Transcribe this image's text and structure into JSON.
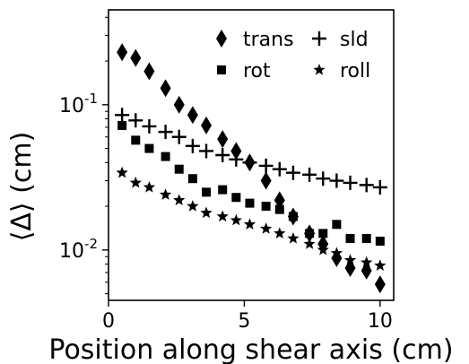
{
  "chart_data": {
    "type": "scatter",
    "xlabel": "Position along shear axis (cm)",
    "ylabel": "⟨Δ⟩ (cm)",
    "xlim": [
      0,
      10.5
    ],
    "ylim": [
      0.0045,
      0.45
    ],
    "yscale": "log",
    "x_ticks": [
      0,
      5,
      10
    ],
    "y_ticks": [
      {
        "value": 0.1,
        "base": "10",
        "exp": "-1"
      },
      {
        "value": 0.01,
        "base": "10",
        "exp": "-2"
      }
    ],
    "grid": false,
    "legend_position": "top-right",
    "series": [
      {
        "name": "trans",
        "marker": "diamond",
        "x": [
          0.5,
          1.0,
          1.5,
          2.1,
          2.6,
          3.1,
          3.6,
          4.2,
          4.7,
          5.2,
          5.8,
          6.3,
          6.8,
          7.4,
          7.9,
          8.4,
          8.9,
          9.5,
          10.0
        ],
        "y": [
          0.23,
          0.21,
          0.17,
          0.13,
          0.1,
          0.085,
          0.072,
          0.058,
          0.048,
          0.04,
          0.03,
          0.022,
          0.017,
          0.013,
          0.011,
          0.0088,
          0.0075,
          0.0072,
          0.0058
        ]
      },
      {
        "name": "rot",
        "marker": "square",
        "x": [
          0.5,
          1.0,
          1.5,
          2.1,
          2.6,
          3.1,
          3.6,
          4.2,
          4.7,
          5.2,
          5.8,
          6.3,
          6.8,
          7.4,
          7.9,
          8.4,
          8.9,
          9.5,
          10.0
        ],
        "y": [
          0.072,
          0.057,
          0.05,
          0.044,
          0.036,
          0.031,
          0.025,
          0.026,
          0.023,
          0.021,
          0.02,
          0.019,
          0.017,
          0.013,
          0.013,
          0.015,
          0.012,
          0.012,
          0.0115
        ]
      },
      {
        "name": "sld",
        "marker": "plus",
        "x": [
          0.5,
          1.0,
          1.5,
          2.1,
          2.6,
          3.1,
          3.6,
          4.2,
          4.7,
          5.2,
          5.8,
          6.3,
          6.8,
          7.4,
          7.9,
          8.4,
          8.9,
          9.5,
          10.0
        ],
        "y": [
          0.085,
          0.078,
          0.071,
          0.065,
          0.06,
          0.052,
          0.048,
          0.045,
          0.042,
          0.04,
          0.038,
          0.036,
          0.034,
          0.033,
          0.031,
          0.03,
          0.029,
          0.028,
          0.027
        ]
      },
      {
        "name": "roll",
        "marker": "star",
        "x": [
          0.5,
          1.0,
          1.5,
          2.1,
          2.6,
          3.1,
          3.6,
          4.2,
          4.7,
          5.2,
          5.8,
          6.3,
          6.8,
          7.4,
          7.9,
          8.4,
          8.9,
          9.5,
          10.0
        ],
        "y": [
          0.034,
          0.029,
          0.027,
          0.024,
          0.022,
          0.02,
          0.018,
          0.017,
          0.016,
          0.015,
          0.014,
          0.013,
          0.012,
          0.011,
          0.01,
          0.0095,
          0.0085,
          0.0082,
          0.0078
        ]
      }
    ]
  }
}
